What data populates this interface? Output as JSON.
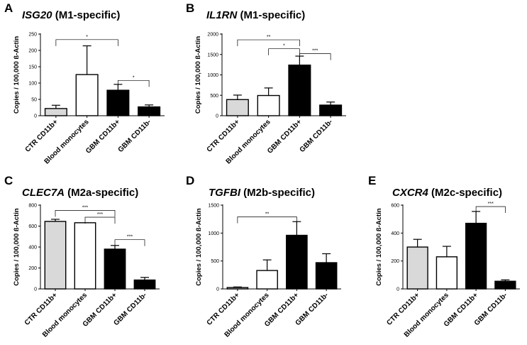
{
  "chart_data": [
    {
      "type": "bar",
      "letter": "A",
      "gene": "ISG20",
      "suffix": " (M1-specific)",
      "ylabel": "Copies / 100,000 ß-Actin",
      "categories": [
        "CTR CD11b+",
        "Blood monocytes",
        "GBM CD11b+",
        "GBM CD11b-"
      ],
      "values": [
        22,
        126,
        78,
        27
      ],
      "errors": [
        10,
        88,
        18,
        6
      ],
      "ylim": [
        0,
        250
      ],
      "yticks": [
        0,
        50,
        100,
        150,
        200,
        250
      ],
      "fills": [
        "#d9d9d9",
        "#ffffff",
        "#000000",
        "#000000"
      ],
      "significance": [
        {
          "from": 0,
          "to": 2,
          "label": "*",
          "y": 233
        },
        {
          "from": 2,
          "to": 3,
          "label": "*",
          "y": 108
        }
      ]
    },
    {
      "type": "bar",
      "letter": "B",
      "gene": "IL1RN",
      "suffix": " (M1-specific)",
      "ylabel": "Copies / 100,000 ß-Actin",
      "categories": [
        "CTR CD11b+",
        "Blood monocytes",
        "GBM CD11b+",
        "GBM CD11b-"
      ],
      "values": [
        395,
        495,
        1240,
        260
      ],
      "errors": [
        110,
        185,
        220,
        75
      ],
      "ylim": [
        0,
        2000
      ],
      "yticks": [
        0,
        500,
        1000,
        1500,
        2000
      ],
      "fills": [
        "#d9d9d9",
        "#ffffff",
        "#000000",
        "#000000"
      ],
      "significance": [
        {
          "from": 0,
          "to": 2,
          "label": "**",
          "y": 1860
        },
        {
          "from": 1,
          "to": 2,
          "label": "*",
          "y": 1640
        },
        {
          "from": 2,
          "to": 3,
          "label": "***",
          "y": 1520
        }
      ]
    },
    {
      "type": "bar",
      "letter": "C",
      "gene": "CLEC7A",
      "suffix": " (M2a-specific)",
      "ylabel": "Copies / 100,000 ß-Actin",
      "categories": [
        "CTR CD11b+",
        "Blood monocytes",
        "GBM CD11b+",
        "GBM CD11b-"
      ],
      "values": [
        645,
        632,
        380,
        85
      ],
      "errors": [
        20,
        0,
        35,
        25
      ],
      "ylim": [
        0,
        800
      ],
      "yticks": [
        0,
        200,
        400,
        600,
        800
      ],
      "fills": [
        "#d9d9d9",
        "#ffffff",
        "#000000",
        "#000000"
      ],
      "significance": [
        {
          "from": 0,
          "to": 2,
          "label": "***",
          "y": 750
        },
        {
          "from": 1,
          "to": 2,
          "label": "***",
          "y": 685
        },
        {
          "from": 2,
          "to": 3,
          "label": "***",
          "y": 470
        }
      ]
    },
    {
      "type": "bar",
      "letter": "D",
      "gene": "TGFBI",
      "suffix": " (M2b-specific)",
      "ylabel": "Copies / 100,000 ß-Actin",
      "categories": [
        "CTR CD11b+",
        "Blood monocytes",
        "GBM CD11b+",
        "GBM CD11b-"
      ],
      "values": [
        25,
        330,
        960,
        470
      ],
      "errors": [
        10,
        190,
        245,
        160
      ],
      "ylim": [
        0,
        1500
      ],
      "yticks": [
        0,
        500,
        1000,
        1500
      ],
      "fills": [
        "#d9d9d9",
        "#ffffff",
        "#000000",
        "#000000"
      ],
      "significance": [
        {
          "from": 0,
          "to": 2,
          "label": "**",
          "y": 1290
        }
      ]
    },
    {
      "type": "bar",
      "letter": "E",
      "gene": "CXCR4",
      "suffix": " (M2c-specific)",
      "ylabel": "Copies / 100,000 ß-Actin",
      "categories": [
        "CTR CD11b+",
        "Blood monocytes",
        "GBM CD11b+",
        "GBM CD11b-"
      ],
      "values": [
        300,
        230,
        470,
        55
      ],
      "errors": [
        55,
        75,
        85,
        10
      ],
      "ylim": [
        0,
        600
      ],
      "yticks": [
        0,
        200,
        400,
        600
      ],
      "fills": [
        "#d9d9d9",
        "#ffffff",
        "#000000",
        "#000000"
      ],
      "significance": [
        {
          "from": 2,
          "to": 3,
          "label": "***",
          "y": 590
        }
      ]
    }
  ]
}
